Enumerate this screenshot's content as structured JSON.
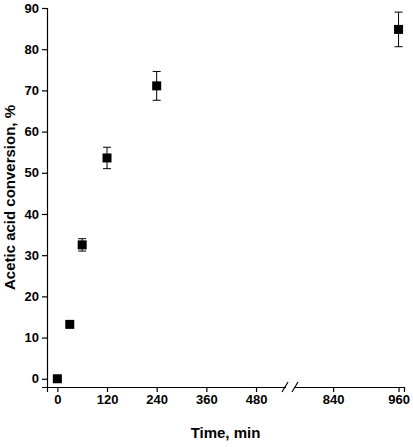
{
  "chart_data": {
    "type": "scatter",
    "x_label": "Time, min",
    "y_label": "Acetic acid conversion, %",
    "x": [
      0,
      30,
      60,
      120,
      240,
      960
    ],
    "values": [
      0,
      13.2,
      32.5,
      53.6,
      71.1,
      84.8
    ],
    "errors": [
      0.5,
      0.6,
      1.5,
      2.6,
      3.5,
      4.2
    ],
    "color": "#000000",
    "marker": "square",
    "xlim": [
      [
        -25,
        550
      ],
      [
        770,
        970
      ]
    ],
    "xticks": [
      0,
      120,
      240,
      360,
      480,
      840,
      960
    ],
    "ylim": [
      -2,
      90
    ],
    "yticks": [
      0,
      10,
      20,
      30,
      40,
      50,
      60,
      70,
      80,
      90
    ],
    "grid": false
  }
}
